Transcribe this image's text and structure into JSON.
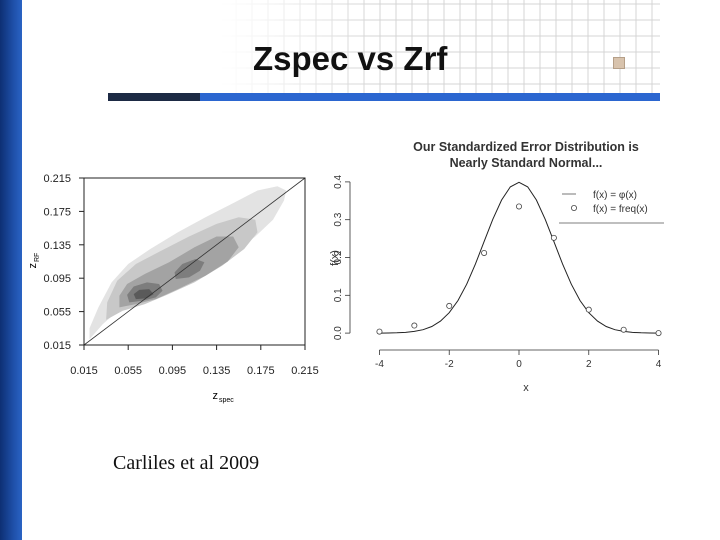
{
  "slide": {
    "title": "Zspec vs Zrf",
    "caption": "Carliles et al 2009",
    "accent_dark": "#1d2a44",
    "accent_blue": "#2b66d0"
  },
  "chart_data": [
    {
      "type": "heatmap",
      "title": "",
      "xlabel": "z",
      "xlabel_sub": "spec",
      "ylabel": "z",
      "ylabel_sub": "RF",
      "xlim": [
        0.015,
        0.215
      ],
      "ylim": [
        0.015,
        0.215
      ],
      "xticks": [
        "0.015",
        "0.055",
        "0.095",
        "0.135",
        "0.175",
        "0.215"
      ],
      "yticks": [
        "0.015",
        "0.055",
        "0.095",
        "0.135",
        "0.175",
        "0.215"
      ],
      "reference_line": [
        [
          0.015,
          0.015
        ],
        [
          0.215,
          0.215
        ]
      ],
      "density_levels": [
        {
          "level": 1,
          "color": "#e3e3e3",
          "outline": [
            [
              0.02,
              0.022
            ],
            [
              0.032,
              0.04
            ],
            [
              0.045,
              0.055
            ],
            [
              0.06,
              0.068
            ],
            [
              0.08,
              0.078
            ],
            [
              0.1,
              0.088
            ],
            [
              0.125,
              0.105
            ],
            [
              0.15,
              0.125
            ],
            [
              0.17,
              0.145
            ],
            [
              0.186,
              0.165
            ],
            [
              0.196,
              0.188
            ],
            [
              0.198,
              0.2
            ],
            [
              0.19,
              0.205
            ],
            [
              0.172,
              0.2
            ],
            [
              0.15,
              0.185
            ],
            [
              0.125,
              0.168
            ],
            [
              0.1,
              0.15
            ],
            [
              0.075,
              0.13
            ],
            [
              0.055,
              0.112
            ],
            [
              0.04,
              0.09
            ],
            [
              0.028,
              0.06
            ],
            [
              0.02,
              0.035
            ]
          ]
        },
        {
          "level": 2,
          "color": "#c8c8c8",
          "outline": [
            [
              0.035,
              0.045
            ],
            [
              0.05,
              0.056
            ],
            [
              0.07,
              0.064
            ],
            [
              0.09,
              0.075
            ],
            [
              0.115,
              0.09
            ],
            [
              0.14,
              0.11
            ],
            [
              0.16,
              0.13
            ],
            [
              0.172,
              0.15
            ],
            [
              0.17,
              0.165
            ],
            [
              0.155,
              0.168
            ],
            [
              0.135,
              0.16
            ],
            [
              0.11,
              0.145
            ],
            [
              0.085,
              0.128
            ],
            [
              0.062,
              0.112
            ],
            [
              0.045,
              0.092
            ],
            [
              0.036,
              0.066
            ]
          ]
        },
        {
          "level": 3,
          "color": "#a3a3a3",
          "outline": [
            [
              0.047,
              0.06
            ],
            [
              0.062,
              0.064
            ],
            [
              0.08,
              0.07
            ],
            [
              0.1,
              0.082
            ],
            [
              0.125,
              0.098
            ],
            [
              0.145,
              0.115
            ],
            [
              0.155,
              0.132
            ],
            [
              0.15,
              0.145
            ],
            [
              0.135,
              0.145
            ],
            [
              0.115,
              0.132
            ],
            [
              0.092,
              0.114
            ],
            [
              0.07,
              0.1
            ],
            [
              0.054,
              0.088
            ],
            [
              0.047,
              0.074
            ]
          ]
        },
        {
          "level": 4,
          "color": "#7d7d7d",
          "outline": [
            [
              0.056,
              0.066
            ],
            [
              0.068,
              0.068
            ],
            [
              0.08,
              0.072
            ],
            [
              0.086,
              0.08
            ],
            [
              0.083,
              0.088
            ],
            [
              0.072,
              0.09
            ],
            [
              0.06,
              0.085
            ],
            [
              0.054,
              0.075
            ]
          ]
        },
        {
          "level": 4,
          "color": "#7d7d7d",
          "outline": [
            [
              0.098,
              0.094
            ],
            [
              0.11,
              0.096
            ],
            [
              0.12,
              0.104
            ],
            [
              0.124,
              0.114
            ],
            [
              0.116,
              0.118
            ],
            [
              0.104,
              0.112
            ],
            [
              0.097,
              0.102
            ]
          ]
        },
        {
          "level": 5,
          "color": "#5a5a5a",
          "outline": [
            [
              0.062,
              0.07
            ],
            [
              0.072,
              0.071
            ],
            [
              0.078,
              0.076
            ],
            [
              0.074,
              0.082
            ],
            [
              0.065,
              0.081
            ],
            [
              0.06,
              0.076
            ]
          ]
        }
      ]
    },
    {
      "type": "line",
      "title": "Our Standardized Error Distribution is",
      "subtitle": "Nearly Standard Normal...",
      "xlabel": "x",
      "ylabel": "f(x)",
      "xlim": [
        -4.3,
        4.3
      ],
      "ylim": [
        -0.005,
        0.405
      ],
      "xticks": [
        "-4",
        "-2",
        "0",
        "2",
        "4"
      ],
      "xtick_values": [
        -4,
        -2,
        0,
        2,
        4
      ],
      "yticks": [
        "0.0",
        "0.1",
        "0.2",
        "0.3",
        "0.4"
      ],
      "ytick_values": [
        0,
        0.1,
        0.2,
        0.3,
        0.4
      ],
      "legend": [
        "f(x) = φ(x)",
        "f(x) = freq(x)"
      ],
      "legend_position": "top-right",
      "series": [
        {
          "type": "line",
          "x": [
            -4.0,
            -3.75,
            -3.5,
            -3.25,
            -3.0,
            -2.75,
            -2.5,
            -2.25,
            -2.0,
            -1.75,
            -1.5,
            -1.25,
            -1.0,
            -0.75,
            -0.5,
            -0.25,
            0.0,
            0.25,
            0.5,
            0.75,
            1.0,
            1.25,
            1.5,
            1.75,
            2.0,
            2.25,
            2.5,
            2.75,
            3.0,
            3.25,
            3.5,
            3.75,
            4.0
          ],
          "values": [
            0.0001,
            0.0004,
            0.0009,
            0.002,
            0.0044,
            0.0091,
            0.0175,
            0.0317,
            0.054,
            0.0863,
            0.1295,
            0.1826,
            0.242,
            0.3011,
            0.3521,
            0.3867,
            0.3989,
            0.3867,
            0.3521,
            0.3011,
            0.242,
            0.1826,
            0.1295,
            0.0863,
            0.054,
            0.0317,
            0.0175,
            0.0091,
            0.0044,
            0.002,
            0.0009,
            0.0004,
            0.0001
          ]
        },
        {
          "type": "scatter",
          "x": [
            -4,
            -3,
            -2,
            -1,
            0,
            1,
            2,
            3,
            4
          ],
          "values": [
            0.004,
            0.02,
            0.072,
            0.212,
            0.335,
            0.252,
            0.062,
            0.009,
            0.0
          ]
        }
      ]
    }
  ]
}
